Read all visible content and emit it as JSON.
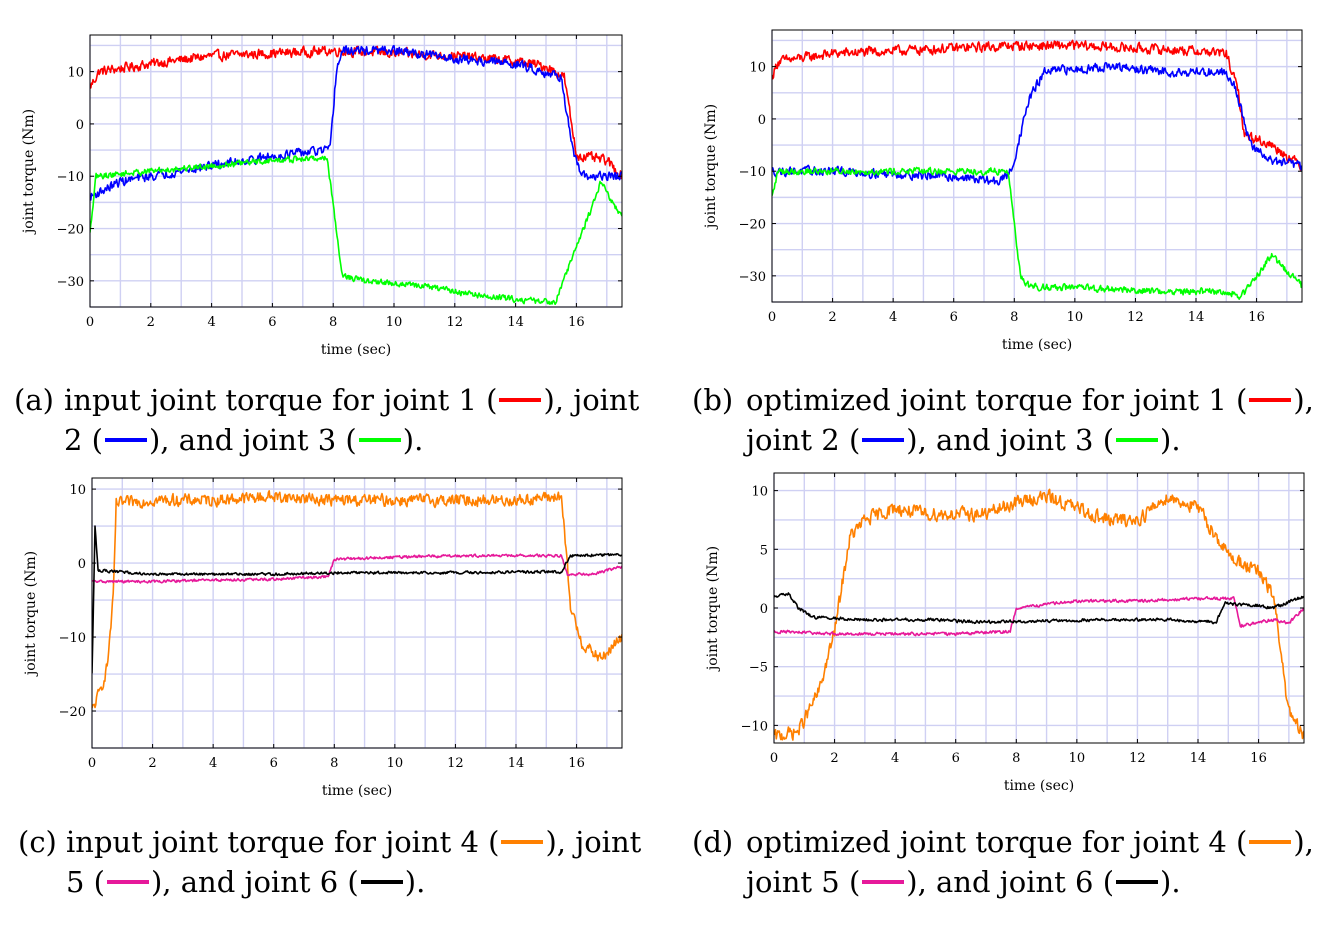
{
  "chart_data": [
    {
      "type": "line",
      "xlabel": "time (sec)",
      "ylabel": "joint torque (Nm)",
      "xlim": [
        0,
        17.5
      ],
      "ylim": [
        -35,
        17
      ],
      "xticks": [
        0,
        2,
        4,
        6,
        8,
        10,
        12,
        14,
        16
      ],
      "yticks": [
        -30,
        -20,
        -10,
        0,
        10
      ],
      "grid": true,
      "series": [
        {
          "color": "#ff0000",
          "noise": 1.3,
          "points": [
            [
              0,
              7
            ],
            [
              0.3,
              10
            ],
            [
              2,
              11.5
            ],
            [
              4,
              13
            ],
            [
              6,
              13.5
            ],
            [
              8,
              14
            ],
            [
              10,
              13.5
            ],
            [
              12,
              13
            ],
            [
              14,
              12
            ],
            [
              15,
              11
            ],
            [
              15.6,
              9
            ],
            [
              16,
              -6
            ],
            [
              17,
              -7
            ],
            [
              17.5,
              -10
            ]
          ]
        },
        {
          "color": "#0000ff",
          "noise": 1.2,
          "points": [
            [
              0,
              -14
            ],
            [
              1,
              -11
            ],
            [
              3,
              -9
            ],
            [
              5,
              -7
            ],
            [
              7,
              -5.5
            ],
            [
              7.9,
              -5
            ],
            [
              8.1,
              10
            ],
            [
              8.3,
              14
            ],
            [
              10,
              14
            ],
            [
              12,
              12.5
            ],
            [
              14,
              11.5
            ],
            [
              15.5,
              9
            ],
            [
              15.9,
              -6
            ],
            [
              16.2,
              -10
            ],
            [
              17.5,
              -10
            ]
          ]
        },
        {
          "color": "#00ff00",
          "noise": 0.8,
          "points": [
            [
              0,
              -21
            ],
            [
              0.2,
              -10
            ],
            [
              2,
              -9
            ],
            [
              4,
              -8
            ],
            [
              6,
              -7
            ],
            [
              7.8,
              -6.5
            ],
            [
              8.3,
              -29
            ],
            [
              9,
              -30
            ],
            [
              11,
              -31
            ],
            [
              13,
              -33
            ],
            [
              15,
              -34
            ],
            [
              15.3,
              -34
            ],
            [
              16.5,
              -16
            ],
            [
              16.8,
              -11
            ],
            [
              17.5,
              -18
            ]
          ]
        }
      ]
    },
    {
      "type": "line",
      "xlabel": "time (sec)",
      "ylabel": "joint torque (Nm)",
      "xlim": [
        0,
        17.5
      ],
      "ylim": [
        -35,
        17
      ],
      "xticks": [
        0,
        2,
        4,
        6,
        8,
        10,
        12,
        14,
        16
      ],
      "yticks": [
        -30,
        -20,
        -10,
        0,
        10
      ],
      "grid": true,
      "series": [
        {
          "color": "#ff0000",
          "noise": 1.3,
          "points": [
            [
              0,
              8
            ],
            [
              0.2,
              11
            ],
            [
              2,
              12.5
            ],
            [
              4,
              13
            ],
            [
              6,
              13.5
            ],
            [
              8,
              14
            ],
            [
              10,
              14
            ],
            [
              12,
              13.5
            ],
            [
              14,
              13
            ],
            [
              15,
              12.5
            ],
            [
              15.4,
              5
            ],
            [
              15.6,
              -3
            ],
            [
              16.5,
              -5
            ],
            [
              17.5,
              -9
            ]
          ]
        },
        {
          "color": "#0000ff",
          "noise": 1.2,
          "points": [
            [
              0,
              -10
            ],
            [
              2,
              -10
            ],
            [
              4,
              -10.5
            ],
            [
              6,
              -11
            ],
            [
              7.5,
              -12
            ],
            [
              7.9,
              -10
            ],
            [
              8.5,
              4
            ],
            [
              9,
              9
            ],
            [
              11,
              10
            ],
            [
              13,
              9
            ],
            [
              15,
              9
            ],
            [
              15.3,
              6
            ],
            [
              15.8,
              -5
            ],
            [
              16.5,
              -8
            ],
            [
              17.5,
              -9
            ]
          ]
        },
        {
          "color": "#00ff00",
          "noise": 0.9,
          "points": [
            [
              0,
              -15
            ],
            [
              0.2,
              -10
            ],
            [
              2,
              -10
            ],
            [
              4,
              -10
            ],
            [
              6,
              -10
            ],
            [
              7.8,
              -10
            ],
            [
              8.2,
              -30
            ],
            [
              8.5,
              -32
            ],
            [
              11,
              -32.5
            ],
            [
              13,
              -33
            ],
            [
              15,
              -33
            ],
            [
              15.5,
              -34
            ],
            [
              16,
              -30
            ],
            [
              16.5,
              -26
            ],
            [
              17.5,
              -32
            ]
          ]
        }
      ]
    },
    {
      "type": "line",
      "xlabel": "time (sec)",
      "ylabel": "joint torque (Nm)",
      "xlim": [
        0,
        17.5
      ],
      "ylim": [
        -25,
        11.5
      ],
      "xticks": [
        0,
        2,
        4,
        6,
        8,
        10,
        12,
        14,
        16
      ],
      "yticks": [
        -20,
        -10,
        0,
        10
      ],
      "grid": true,
      "series": [
        {
          "color": "#ff8000",
          "noise": 1.1,
          "points": [
            [
              0,
              -20
            ],
            [
              0.3,
              -17
            ],
            [
              0.5,
              -14
            ],
            [
              0.7,
              -5
            ],
            [
              0.8,
              8
            ],
            [
              2,
              8.5
            ],
            [
              4,
              8.5
            ],
            [
              6,
              9
            ],
            [
              8,
              8.5
            ],
            [
              10,
              8.5
            ],
            [
              12,
              8.5
            ],
            [
              14,
              8.5
            ],
            [
              15.5,
              9
            ],
            [
              15.8,
              -6
            ],
            [
              16.2,
              -11
            ],
            [
              16.8,
              -13
            ],
            [
              17.5,
              -10
            ]
          ]
        },
        {
          "color": "#e6199a",
          "noise": 0.25,
          "points": [
            [
              0,
              -2.5
            ],
            [
              2,
              -2.5
            ],
            [
              4,
              -2.3
            ],
            [
              6,
              -2.2
            ],
            [
              7.8,
              -1.8
            ],
            [
              8,
              0.5
            ],
            [
              10,
              0.8
            ],
            [
              12,
              1
            ],
            [
              14,
              1
            ],
            [
              15.5,
              1
            ],
            [
              15.7,
              -1.5
            ],
            [
              16.5,
              -1.5
            ],
            [
              17.5,
              -0.5
            ]
          ]
        },
        {
          "color": "#000000",
          "noise": 0.25,
          "points": [
            [
              0,
              -15
            ],
            [
              0.1,
              5
            ],
            [
              0.2,
              -1
            ],
            [
              2,
              -1.5
            ],
            [
              4,
              -1.5
            ],
            [
              6,
              -1.5
            ],
            [
              8,
              -1.3
            ],
            [
              10,
              -1.3
            ],
            [
              12,
              -1.3
            ],
            [
              14,
              -1.2
            ],
            [
              15.5,
              -1.2
            ],
            [
              15.8,
              1
            ],
            [
              17.5,
              1.2
            ]
          ]
        }
      ]
    },
    {
      "type": "line",
      "xlabel": "time (sec)",
      "ylabel": "joint torque (Nm)",
      "xlim": [
        0,
        17.5
      ],
      "ylim": [
        -11.5,
        11.5
      ],
      "xticks": [
        0,
        2,
        4,
        6,
        8,
        10,
        12,
        14,
        16
      ],
      "yticks": [
        -10,
        -5,
        0,
        5,
        10
      ],
      "grid": true,
      "series": [
        {
          "color": "#ff8000",
          "noise": 0.8,
          "points": [
            [
              0,
              -11
            ],
            [
              0.8,
              -10.5
            ],
            [
              1.5,
              -7
            ],
            [
              2,
              -2
            ],
            [
              2.5,
              6
            ],
            [
              3,
              7.5
            ],
            [
              4,
              8.5
            ],
            [
              5,
              8
            ],
            [
              6,
              8
            ],
            [
              7,
              8
            ],
            [
              8,
              9
            ],
            [
              9,
              9.5
            ],
            [
              10,
              8.5
            ],
            [
              11,
              7.5
            ],
            [
              12,
              7.5
            ],
            [
              13,
              9.5
            ],
            [
              14,
              8.5
            ],
            [
              15,
              4.5
            ],
            [
              16,
              3
            ],
            [
              16.5,
              1
            ],
            [
              17,
              -9
            ],
            [
              17.5,
              -11
            ]
          ]
        },
        {
          "color": "#e6199a",
          "noise": 0.18,
          "points": [
            [
              0,
              -2
            ],
            [
              2,
              -2.2
            ],
            [
              4,
              -2.2
            ],
            [
              6,
              -2.2
            ],
            [
              7.8,
              -2
            ],
            [
              8,
              0
            ],
            [
              10,
              0.6
            ],
            [
              12,
              0.6
            ],
            [
              14,
              0.8
            ],
            [
              15.2,
              0.8
            ],
            [
              15.4,
              -1.5
            ],
            [
              16.5,
              -1
            ],
            [
              17,
              -1.3
            ],
            [
              17.5,
              0
            ]
          ]
        },
        {
          "color": "#000000",
          "noise": 0.18,
          "points": [
            [
              0,
              1
            ],
            [
              0.5,
              1.2
            ],
            [
              0.8,
              0
            ],
            [
              1.3,
              -0.8
            ],
            [
              3,
              -1
            ],
            [
              5,
              -1
            ],
            [
              7,
              -1.2
            ],
            [
              9,
              -1.1
            ],
            [
              11,
              -1
            ],
            [
              13,
              -1
            ],
            [
              14.6,
              -1.2
            ],
            [
              14.9,
              0.4
            ],
            [
              16,
              0.2
            ],
            [
              16.5,
              0
            ],
            [
              17.5,
              1
            ]
          ]
        }
      ]
    }
  ],
  "captions": [
    {
      "tag": "(a)",
      "line1_a": "input joint torque for joint 1 (",
      "line1_b": "), joint",
      "line2_a": "2 (",
      "line2_b": "), and joint 3 (",
      "line2_c": ").",
      "sw1": "#ff0000",
      "sw2": "#0000ff",
      "sw3": "#00ff00"
    },
    {
      "tag": "(b)",
      "line1_a": "optimized joint torque for joint 1 (",
      "line1_b": "),",
      "line2_a": "joint 2 (",
      "line2_b": "), and joint 3 (",
      "line2_c": ").",
      "sw1": "#ff0000",
      "sw2": "#0000ff",
      "sw3": "#00ff00"
    },
    {
      "tag": "(c)",
      "line1_a": "input joint torque for joint 4 (",
      "line1_b": "), joint",
      "line2_a": "5 (",
      "line2_b": "), and joint 6 (",
      "line2_c": ").",
      "sw1": "#ff8000",
      "sw2": "#e6199a",
      "sw3": "#000000"
    },
    {
      "tag": "(d)",
      "line1_a": "optimized joint torque for joint 4 (",
      "line1_b": "),",
      "line2_a": "joint 5 (",
      "line2_b": "), and joint 6 (",
      "line2_c": ").",
      "sw1": "#ff8000",
      "sw2": "#e6199a",
      "sw3": "#000000"
    }
  ]
}
